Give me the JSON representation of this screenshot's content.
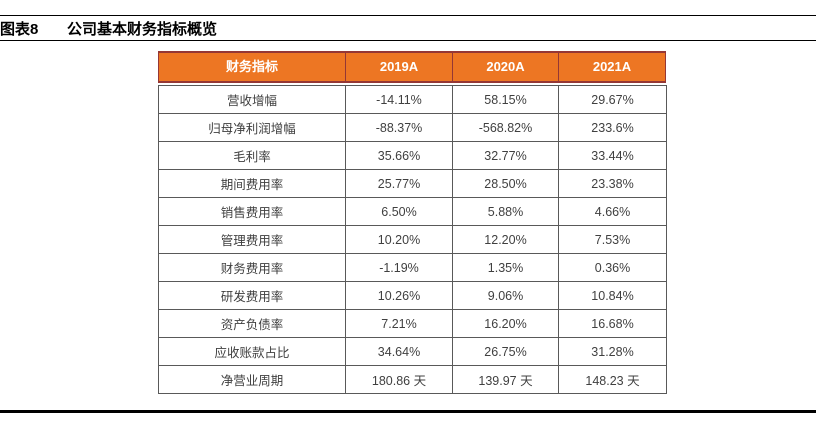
{
  "page": {
    "figure_label": "图表8",
    "figure_title": "公司基本财务指标概览"
  },
  "table": {
    "columns": [
      "财务指标",
      "2019A",
      "2020A",
      "2021A"
    ],
    "rows": [
      [
        "营收增幅",
        "-14.11%",
        "58.15%",
        "29.67%"
      ],
      [
        "归母净利润增幅",
        "-88.37%",
        "-568.82%",
        "233.6%"
      ],
      [
        "毛利率",
        "35.66%",
        "32.77%",
        "33.44%"
      ],
      [
        "期间费用率",
        "25.77%",
        "28.50%",
        "23.38%"
      ],
      [
        "销售费用率",
        "6.50%",
        "5.88%",
        "4.66%"
      ],
      [
        "管理费用率",
        "10.20%",
        "12.20%",
        "7.53%"
      ],
      [
        "财务费用率",
        "-1.19%",
        "1.35%",
        "0.36%"
      ],
      [
        "研发费用率",
        "10.26%",
        "9.06%",
        "10.84%"
      ],
      [
        "资产负债率",
        "7.21%",
        "16.20%",
        "16.68%"
      ],
      [
        "应收账款占比",
        "34.64%",
        "26.75%",
        "31.28%"
      ],
      [
        "净营业周期",
        "180.86 天",
        "139.97 天",
        "148.23 天"
      ]
    ]
  },
  "colors": {
    "header_bg": "#ED7623",
    "header_border": "#953735",
    "header_text": "#FFFFFF",
    "body_border": "#595959",
    "body_text": "#404040",
    "rule_color": "#000000"
  }
}
